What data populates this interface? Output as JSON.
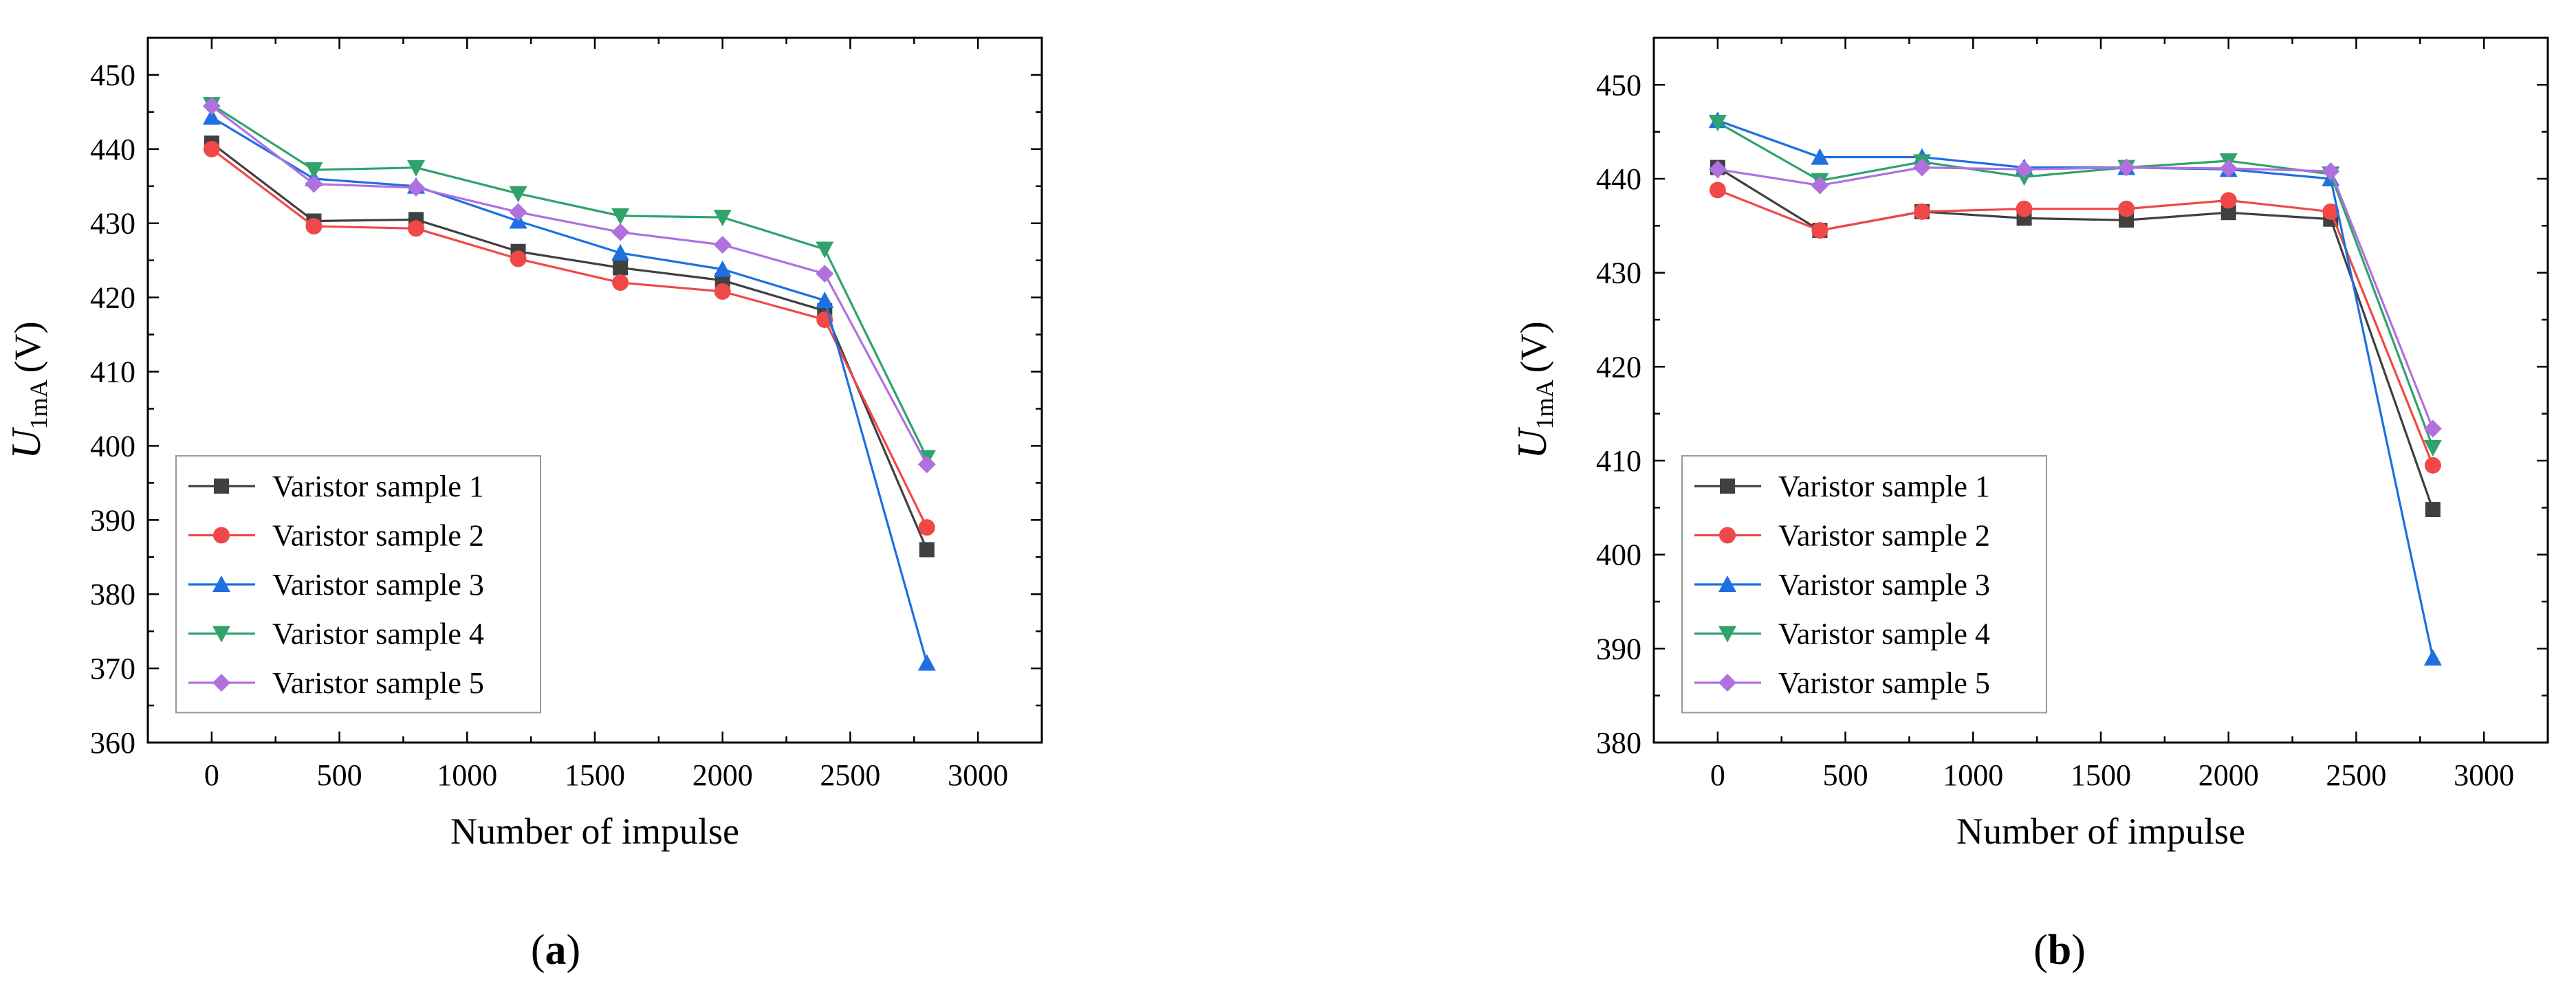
{
  "chart_data": [
    {
      "panel": "a",
      "caption": "(a)",
      "caption_letter": "a",
      "type": "line",
      "title": "",
      "xlabel": "Number of impulse",
      "ylabel_main": "U",
      "ylabel_sub": "1mA",
      "ylabel_unit": "(V)",
      "xlim": [
        -250,
        3250
      ],
      "ylim": [
        360,
        455
      ],
      "xticks": [
        0,
        500,
        1000,
        1500,
        2000,
        2500,
        3000
      ],
      "yticks": [
        360,
        370,
        380,
        390,
        400,
        410,
        420,
        430,
        440,
        450
      ],
      "legend_position": "bottom-left",
      "x": [
        0,
        400,
        800,
        1200,
        1600,
        2000,
        2400,
        2800
      ],
      "series": [
        {
          "name": "Varistor sample 1",
          "marker": "square",
          "color": "#404040",
          "values": [
            440.8,
            430.3,
            430.5,
            426.2,
            424.0,
            422.3,
            418.2,
            386.0
          ]
        },
        {
          "name": "Varistor sample 2",
          "marker": "circle",
          "color": "#f04848",
          "values": [
            440.0,
            429.6,
            429.3,
            425.2,
            422.0,
            420.8,
            417.0,
            389.0
          ]
        },
        {
          "name": "Varistor sample 3",
          "marker": "triangle-up",
          "color": "#1f6fe0",
          "values": [
            444.3,
            436.0,
            435.0,
            430.3,
            426.0,
            423.8,
            419.6,
            370.7
          ]
        },
        {
          "name": "Varistor sample 4",
          "marker": "triangle-down",
          "color": "#2fa36b",
          "values": [
            446.0,
            437.2,
            437.5,
            434.0,
            431.0,
            430.8,
            426.5,
            398.4
          ]
        },
        {
          "name": "Varistor sample 5",
          "marker": "diamond",
          "color": "#b070e0",
          "values": [
            445.8,
            435.3,
            434.8,
            431.5,
            428.8,
            427.1,
            423.2,
            397.5
          ]
        }
      ]
    },
    {
      "panel": "b",
      "caption": "(b)",
      "caption_letter": "b",
      "type": "line",
      "title": "",
      "xlabel": "Number of impulse",
      "ylabel_main": "U",
      "ylabel_sub": "1mA",
      "ylabel_unit": "(V)",
      "xlim": [
        -250,
        3250
      ],
      "ylim": [
        380,
        455
      ],
      "xticks": [
        0,
        500,
        1000,
        1500,
        2000,
        2500,
        3000
      ],
      "yticks": [
        380,
        390,
        400,
        410,
        420,
        430,
        440,
        450
      ],
      "legend_position": "bottom-left",
      "x": [
        0,
        400,
        800,
        1200,
        1600,
        2000,
        2400,
        2800
      ],
      "series": [
        {
          "name": "Varistor sample 1",
          "marker": "square",
          "color": "#404040",
          "values": [
            441.2,
            434.5,
            436.5,
            435.8,
            435.6,
            436.4,
            435.7,
            404.8
          ]
        },
        {
          "name": "Varistor sample 2",
          "marker": "circle",
          "color": "#f04848",
          "values": [
            438.8,
            434.5,
            436.5,
            436.8,
            436.8,
            437.7,
            436.5,
            409.5
          ]
        },
        {
          "name": "Varistor sample 3",
          "marker": "triangle-up",
          "color": "#1f6fe0",
          "values": [
            446.2,
            442.3,
            442.3,
            441.2,
            441.2,
            441.0,
            440.0,
            389.0
          ]
        },
        {
          "name": "Varistor sample 4",
          "marker": "triangle-down",
          "color": "#2fa36b",
          "values": [
            446.0,
            439.8,
            441.8,
            440.2,
            441.2,
            441.9,
            440.5,
            411.4
          ]
        },
        {
          "name": "Varistor sample 5",
          "marker": "diamond",
          "color": "#b070e0",
          "values": [
            441.0,
            439.3,
            441.2,
            441.0,
            441.2,
            441.1,
            440.8,
            413.4
          ]
        }
      ]
    }
  ]
}
